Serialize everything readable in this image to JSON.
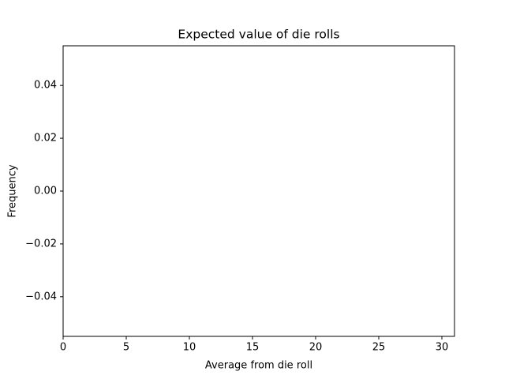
{
  "chart_data": {
    "type": "histogram",
    "title": "Expected value of die rolls",
    "xlabel": "Average from die roll",
    "ylabel": "Frequency",
    "xlim": [
      0,
      31
    ],
    "xticks": [
      0,
      5,
      10,
      15,
      20,
      25,
      30
    ],
    "ylim": [
      -0.055,
      0.055
    ],
    "yticks": [
      {
        "value": -0.04,
        "label": "−0.04"
      },
      {
        "value": -0.02,
        "label": "−0.02"
      },
      {
        "value": 0,
        "label": "0.00"
      },
      0.02,
      0.04
    ],
    "grid": false
  }
}
